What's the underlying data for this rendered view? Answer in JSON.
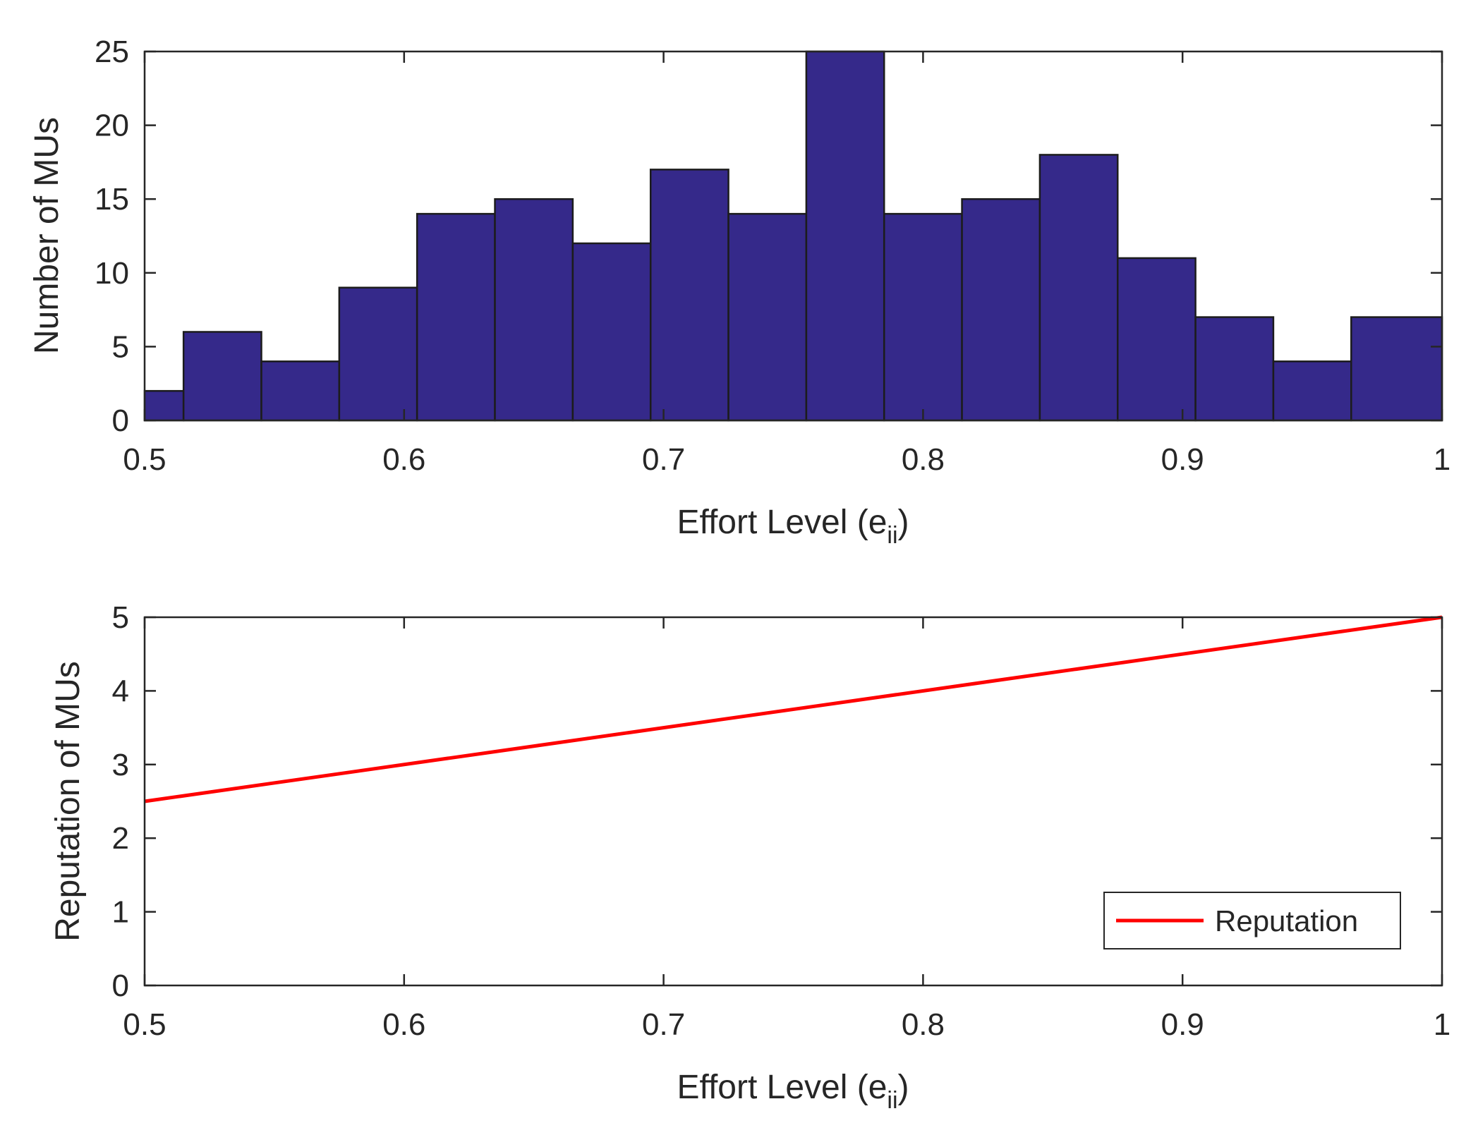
{
  "chart_data": [
    {
      "type": "bar",
      "title": "",
      "xlabel": "Effort Level (e",
      "xlabel_subscript": "ii",
      "xlabel_close": ")",
      "ylabel": "Number of MUs",
      "xlim": [
        0.5,
        1.0
      ],
      "ylim": [
        0,
        25
      ],
      "xticks": [
        0.5,
        0.6,
        0.7,
        0.8,
        0.9,
        1.0
      ],
      "xtick_labels": [
        "0.5",
        "0.6",
        "0.7",
        "0.8",
        "0.9",
        "1"
      ],
      "yticks": [
        0,
        5,
        10,
        15,
        20,
        25
      ],
      "ytick_labels": [
        "0",
        "5",
        "10",
        "15",
        "20",
        "25"
      ],
      "bin_edges": [
        0.5,
        0.515,
        0.545,
        0.575,
        0.605,
        0.635,
        0.665,
        0.695,
        0.725,
        0.755,
        0.785,
        0.815,
        0.845,
        0.875,
        0.905,
        0.935,
        0.965,
        1.0
      ],
      "values": [
        2,
        6,
        4,
        9,
        14,
        15,
        12,
        17,
        14,
        25,
        14,
        15,
        18,
        11,
        7,
        4,
        7
      ],
      "bar_color": "#35298a",
      "edge_color": "#1c1c1c"
    },
    {
      "type": "line",
      "title": "",
      "xlabel": "Effort Level (e",
      "xlabel_subscript": "ii",
      "xlabel_close": ")",
      "ylabel": "Reputation of MUs",
      "xlim": [
        0.5,
        1.0
      ],
      "ylim": [
        0,
        5
      ],
      "xticks": [
        0.5,
        0.6,
        0.7,
        0.8,
        0.9,
        1.0
      ],
      "xtick_labels": [
        "0.5",
        "0.6",
        "0.7",
        "0.8",
        "0.9",
        "1"
      ],
      "yticks": [
        0,
        1,
        2,
        3,
        4,
        5
      ],
      "ytick_labels": [
        "0",
        "1",
        "2",
        "3",
        "4",
        "5"
      ],
      "series": [
        {
          "name": "Reputation",
          "x": [
            0.5,
            1.0
          ],
          "y": [
            2.5,
            5.0
          ],
          "color": "#ff0000"
        }
      ],
      "legend": {
        "entries": [
          "Reputation"
        ],
        "location": "bottom-right"
      }
    }
  ]
}
